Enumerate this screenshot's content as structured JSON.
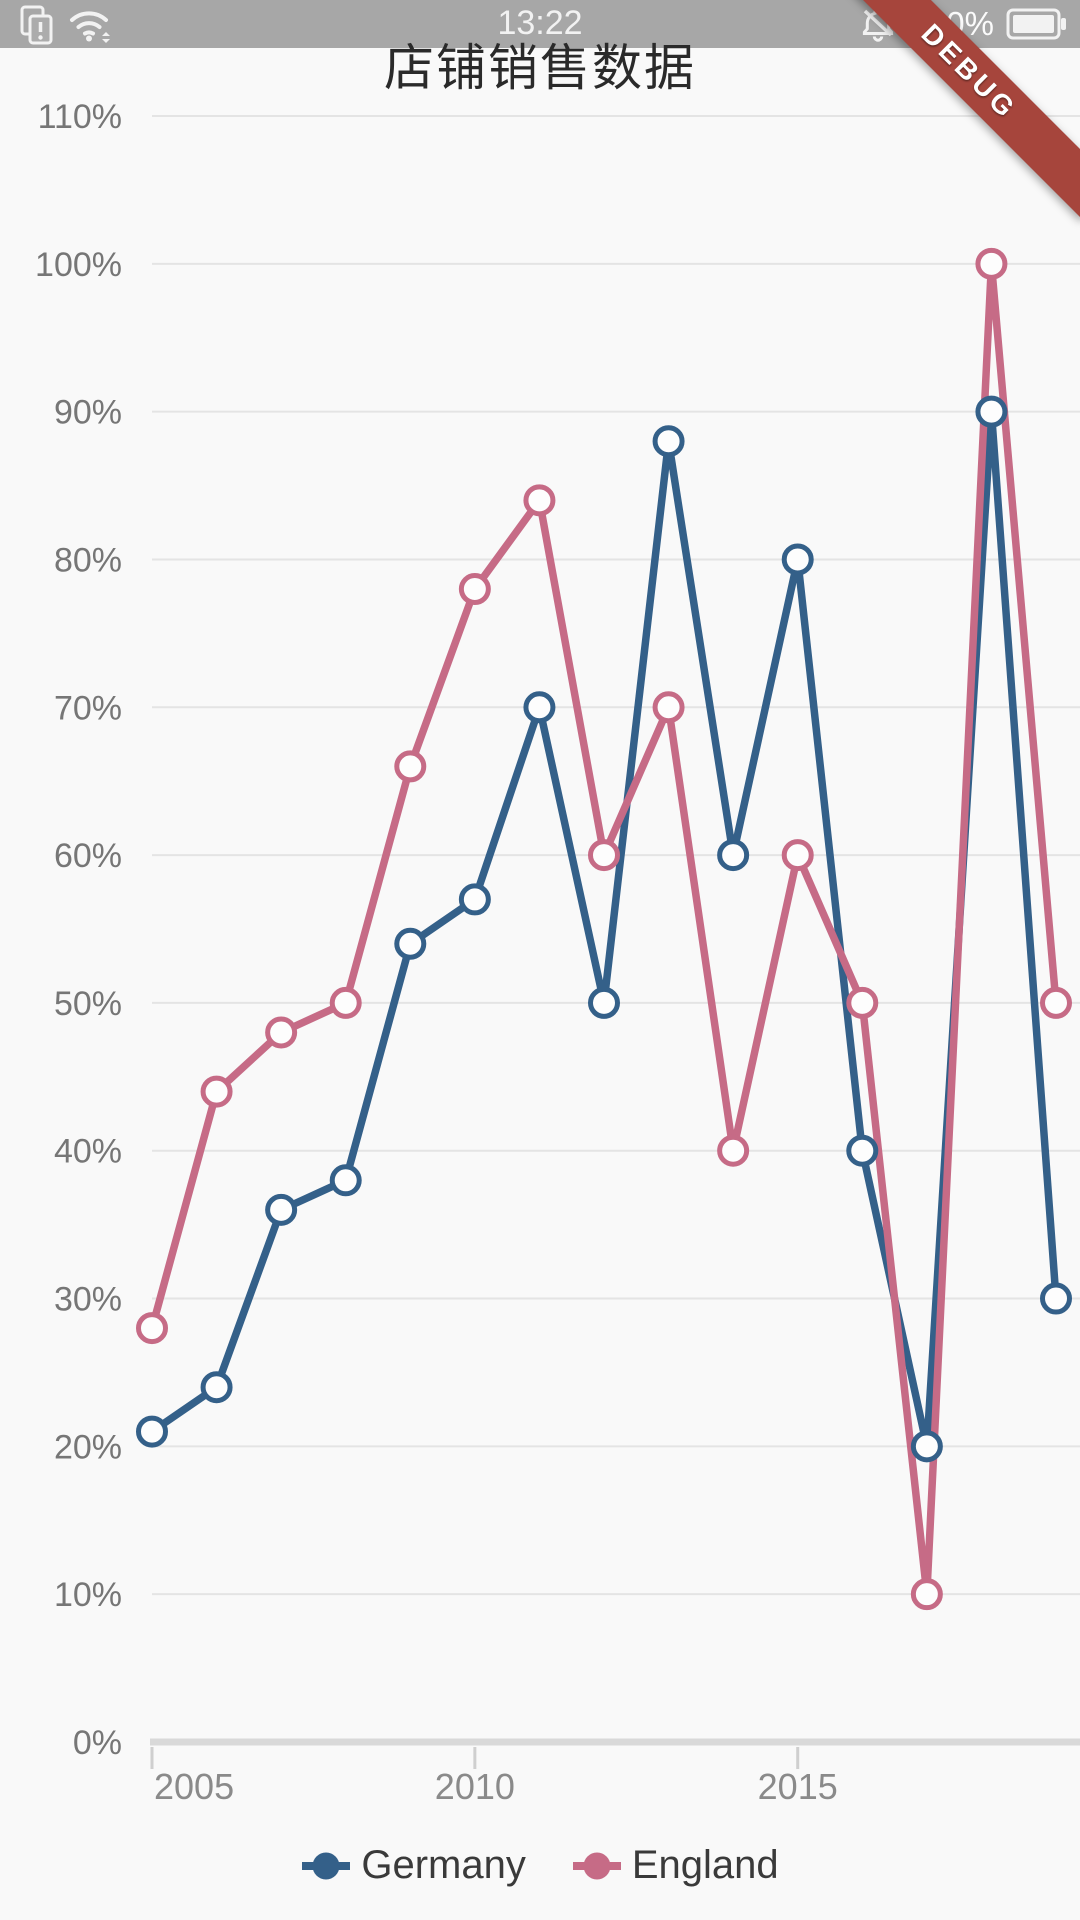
{
  "status_bar": {
    "time": "13:22",
    "battery_percent": "100%",
    "left_icons": [
      "no-sim-icon",
      "wifi-icon"
    ],
    "right_icons": [
      "notifications-off-icon",
      "battery-icon"
    ],
    "bar_color": "#acacac"
  },
  "debug_banner": {
    "label": "DEBUG",
    "color": "#A6453C"
  },
  "chart_data": {
    "type": "line",
    "title": "店铺销售数据",
    "categories": [
      "2005",
      "2006",
      "2007",
      "2008",
      "2009",
      "2010",
      "2011",
      "2012",
      "2013",
      "2014",
      "2015",
      "2016",
      "2017",
      "2018",
      "2019"
    ],
    "x_axis_labels": [
      {
        "label": "2005",
        "index": 0
      },
      {
        "label": "2010",
        "index": 5
      },
      {
        "label": "2015",
        "index": 10
      }
    ],
    "y_ticks": [
      0,
      10,
      20,
      30,
      40,
      50,
      60,
      70,
      80,
      90,
      100,
      110
    ],
    "y_tick_labels": [
      "0%",
      "10%",
      "20%",
      "30%",
      "40%",
      "50%",
      "60%",
      "70%",
      "80%",
      "90%",
      "100%",
      "110%"
    ],
    "ylim": [
      0,
      110
    ],
    "grid": true,
    "legend_position": "bottom",
    "series": [
      {
        "name": "Germany",
        "color": "#346089",
        "values": [
          21,
          24,
          36,
          38,
          54,
          57,
          70,
          50,
          88,
          60,
          80,
          40,
          20,
          90,
          30
        ]
      },
      {
        "name": "England",
        "color": "#C66B86",
        "values": [
          28,
          44,
          48,
          50,
          66,
          78,
          84,
          60,
          70,
          40,
          60,
          50,
          10,
          100,
          50
        ]
      }
    ],
    "marker_fill": "#fdfdfd",
    "grid_color": "#e4e4e4",
    "axis_color": "#d9d9d9",
    "tick_color": "#cfcfcf",
    "y_label_color": "#767676",
    "x_label_color": "#8a8a8a",
    "legend_text_color": "#3a3a3a"
  }
}
